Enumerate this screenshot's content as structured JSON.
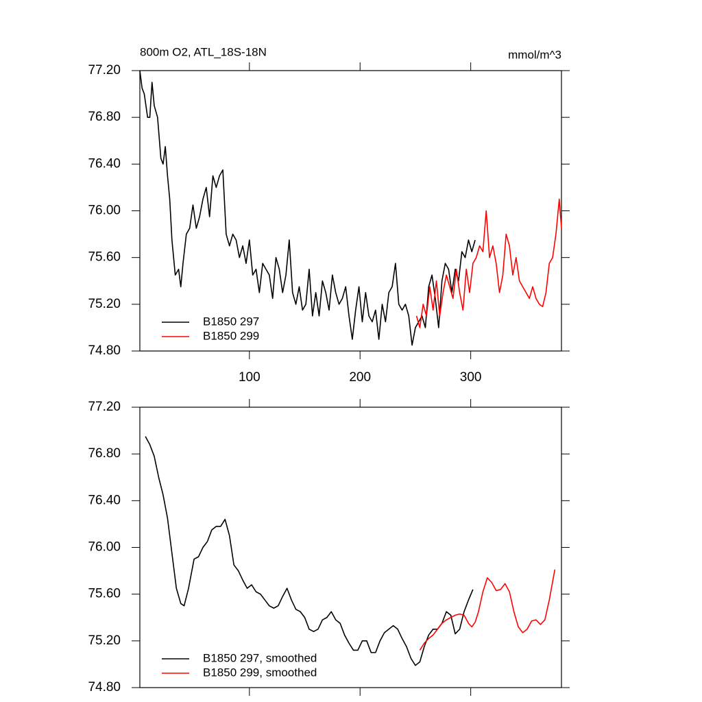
{
  "chart_data": [
    {
      "type": "line",
      "title": "800m O2, ATL_18S-18N",
      "units": "mmol/m^3",
      "xlim": [
        1,
        382
      ],
      "xticks": [
        100,
        200,
        300
      ],
      "xtick_labels": true,
      "ylim": [
        74.8,
        77.2
      ],
      "yticks": [
        {
          "value": 74.8,
          "label": "74.80"
        },
        {
          "value": 75.2,
          "label": "75.20"
        },
        {
          "value": 75.6,
          "label": "75.60"
        },
        {
          "value": 76.0,
          "label": "76.00"
        },
        {
          "value": 76.4,
          "label": "76.40"
        },
        {
          "value": 76.8,
          "label": "76.80"
        },
        {
          "value": 77.2,
          "label": "77.20"
        }
      ],
      "legend": "lower-left",
      "series": [
        {
          "name": "B1850 297",
          "color": "#000000",
          "x": [
            1,
            3,
            5,
            8,
            10,
            12,
            14,
            17,
            20,
            22,
            24,
            26,
            28,
            30,
            33,
            36,
            38,
            40,
            43,
            46,
            49,
            52,
            55,
            58,
            61,
            64,
            67,
            70,
            73,
            76,
            79,
            82,
            85,
            88,
            91,
            94,
            97,
            100,
            103,
            106,
            109,
            112,
            115,
            118,
            121,
            124,
            127,
            130,
            133,
            136,
            139,
            142,
            145,
            148,
            151,
            154,
            157,
            160,
            163,
            166,
            169,
            172,
            175,
            178,
            181,
            184,
            187,
            190,
            193,
            196,
            199,
            202,
            205,
            208,
            211,
            214,
            217,
            220,
            223,
            226,
            229,
            232,
            235,
            238,
            241,
            244,
            247,
            250,
            253,
            256,
            259,
            262,
            265,
            268,
            271,
            274,
            277,
            280,
            283,
            286,
            289,
            292,
            295,
            298,
            301,
            304
          ],
          "values": [
            77.2,
            77.05,
            77.0,
            76.8,
            76.8,
            77.1,
            76.9,
            76.8,
            76.45,
            76.4,
            76.55,
            76.3,
            76.1,
            75.75,
            75.45,
            75.5,
            75.35,
            75.55,
            75.8,
            75.85,
            76.05,
            75.85,
            75.95,
            76.1,
            76.2,
            75.95,
            76.3,
            76.2,
            76.3,
            76.35,
            75.8,
            75.7,
            75.8,
            75.75,
            75.6,
            75.7,
            75.55,
            75.75,
            75.45,
            75.5,
            75.3,
            75.55,
            75.5,
            75.45,
            75.25,
            75.6,
            75.5,
            75.3,
            75.45,
            75.75,
            75.3,
            75.2,
            75.35,
            75.15,
            75.2,
            75.5,
            75.1,
            75.3,
            75.1,
            75.4,
            75.3,
            75.15,
            75.45,
            75.3,
            75.2,
            75.25,
            75.35,
            75.1,
            74.9,
            75.15,
            75.35,
            75.05,
            75.3,
            75.1,
            75.05,
            75.15,
            74.9,
            75.2,
            75.05,
            75.3,
            75.35,
            75.55,
            75.2,
            75.15,
            75.2,
            75.1,
            74.85,
            75.0,
            75.05,
            75.1,
            75.0,
            75.35,
            75.45,
            75.25,
            75.0,
            75.4,
            75.55,
            75.5,
            75.3,
            75.5,
            75.4,
            75.65,
            75.6,
            75.75,
            75.65,
            75.75
          ]
        },
        {
          "name": "B1850 299",
          "color": "#ff0000",
          "x": [
            251,
            254,
            257,
            260,
            263,
            266,
            269,
            272,
            275,
            278,
            281,
            284,
            287,
            290,
            293,
            296,
            299,
            302,
            305,
            308,
            311,
            314,
            317,
            320,
            323,
            326,
            329,
            332,
            335,
            338,
            341,
            344,
            347,
            350,
            353,
            356,
            359,
            362,
            365,
            368,
            371,
            374,
            377,
            380,
            382
          ],
          "values": [
            75.1,
            75.0,
            75.2,
            75.1,
            75.35,
            75.15,
            75.4,
            75.1,
            75.3,
            75.45,
            75.35,
            75.25,
            75.5,
            75.3,
            75.15,
            75.5,
            75.3,
            75.55,
            75.6,
            75.7,
            75.65,
            76.0,
            75.6,
            75.7,
            75.55,
            75.3,
            75.45,
            75.8,
            75.7,
            75.45,
            75.6,
            75.4,
            75.35,
            75.3,
            75.25,
            75.35,
            75.25,
            75.2,
            75.18,
            75.3,
            75.55,
            75.6,
            75.8,
            76.1,
            75.85
          ]
        }
      ]
    },
    {
      "type": "line",
      "xlim": [
        1,
        382
      ],
      "xticks": [
        100,
        200,
        300
      ],
      "xtick_labels": false,
      "ylim": [
        74.8,
        77.2
      ],
      "yticks": [
        {
          "value": 74.8,
          "label": "74.80"
        },
        {
          "value": 75.2,
          "label": "75.20"
        },
        {
          "value": 75.6,
          "label": "75.60"
        },
        {
          "value": 76.0,
          "label": "76.00"
        },
        {
          "value": 76.4,
          "label": "76.40"
        },
        {
          "value": 76.8,
          "label": "76.80"
        },
        {
          "value": 77.2,
          "label": "77.20"
        }
      ],
      "legend": "lower-left",
      "series": [
        {
          "name": "B1850 297, smoothed",
          "color": "#000000",
          "x": [
            6,
            10,
            14,
            18,
            22,
            26,
            30,
            34,
            38,
            41,
            45,
            50,
            54,
            58,
            62,
            66,
            70,
            74,
            78,
            82,
            86,
            90,
            94,
            98,
            102,
            106,
            110,
            114,
            118,
            122,
            126,
            130,
            134,
            138,
            142,
            146,
            150,
            154,
            158,
            162,
            166,
            170,
            174,
            178,
            182,
            186,
            190,
            194,
            198,
            202,
            206,
            210,
            214,
            218,
            222,
            226,
            230,
            234,
            238,
            242,
            246,
            250,
            254,
            258,
            262,
            266,
            270,
            274,
            278,
            282,
            286,
            290,
            294,
            298,
            302
          ],
          "values": [
            76.95,
            76.88,
            76.78,
            76.6,
            76.45,
            76.25,
            75.95,
            75.65,
            75.52,
            75.5,
            75.65,
            75.9,
            75.92,
            76.0,
            76.05,
            76.15,
            76.18,
            76.18,
            76.24,
            76.1,
            75.85,
            75.8,
            75.72,
            75.65,
            75.68,
            75.62,
            75.6,
            75.55,
            75.5,
            75.48,
            75.5,
            75.58,
            75.65,
            75.55,
            75.47,
            75.45,
            75.4,
            75.3,
            75.28,
            75.3,
            75.38,
            75.4,
            75.45,
            75.38,
            75.35,
            75.25,
            75.18,
            75.12,
            75.12,
            75.2,
            75.2,
            75.1,
            75.1,
            75.2,
            75.27,
            75.3,
            75.33,
            75.3,
            75.22,
            75.15,
            75.05,
            74.99,
            75.02,
            75.15,
            75.25,
            75.3,
            75.3,
            75.35,
            75.45,
            75.42,
            75.26,
            75.3,
            75.45,
            75.55,
            75.64
          ]
        },
        {
          "name": "B1850 299, smoothed",
          "color": "#ff0000",
          "x": [
            254,
            258,
            262,
            266,
            270,
            274,
            278,
            282,
            286,
            290,
            294,
            298,
            301,
            304,
            307,
            311,
            315,
            319,
            323,
            327,
            331,
            335,
            339,
            343,
            347,
            351,
            355,
            359,
            363,
            367,
            371,
            376
          ],
          "values": [
            75.12,
            75.18,
            75.22,
            75.25,
            75.3,
            75.35,
            75.38,
            75.4,
            75.42,
            75.43,
            75.42,
            75.35,
            75.32,
            75.36,
            75.45,
            75.62,
            75.74,
            75.7,
            75.63,
            75.64,
            75.69,
            75.62,
            75.45,
            75.32,
            75.27,
            75.3,
            75.37,
            75.38,
            75.34,
            75.38,
            75.55,
            75.81
          ]
        }
      ]
    }
  ]
}
